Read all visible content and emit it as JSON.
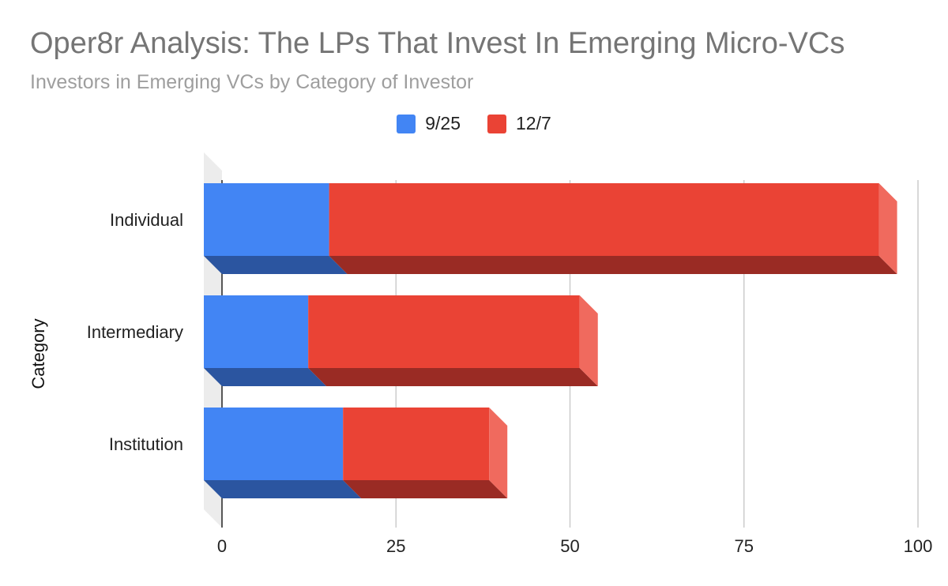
{
  "chart_data": {
    "type": "bar",
    "orientation": "horizontal",
    "stacked": true,
    "style": "3d",
    "title": "Oper8r Analysis: The LPs That Invest In Emerging Micro-VCs",
    "subtitle": "Investors in Emerging VCs by Category of Investor",
    "xlabel": "",
    "ylabel": "Category",
    "categories": [
      "Individual",
      "Intermediary",
      "Institution"
    ],
    "series": [
      {
        "name": "9/25",
        "values": [
          18,
          15,
          20
        ],
        "color": "#4285f4",
        "shade": "#2b55a0"
      },
      {
        "name": "12/7",
        "values": [
          79,
          39,
          21
        ],
        "color": "#ea4335",
        "side": "#f06a5e",
        "shade": "#9a2b24"
      }
    ],
    "xlim": [
      0,
      100
    ],
    "xticks": [
      0,
      25,
      50,
      75,
      100
    ],
    "grid": true,
    "legend_position": "top"
  }
}
